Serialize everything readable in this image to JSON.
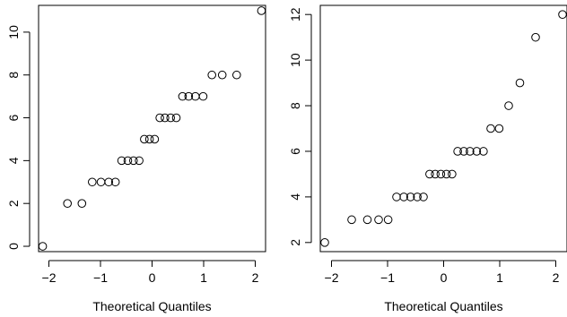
{
  "chart_data": [
    {
      "type": "scatter",
      "title": "",
      "xlabel": "Theoretical Quantiles",
      "ylabel": "",
      "xlim": [
        -2.2,
        2.2
      ],
      "ylim": [
        -0.25,
        11.25
      ],
      "x_ticks": [
        "−2",
        "−1",
        "0",
        "1",
        "2"
      ],
      "y_ticks": [
        "0",
        "2",
        "4",
        "6",
        "8",
        "10"
      ],
      "grid": false,
      "points": [
        {
          "x": -2.12,
          "y": 0
        },
        {
          "x": -1.64,
          "y": 2
        },
        {
          "x": -1.36,
          "y": 2
        },
        {
          "x": -1.16,
          "y": 3
        },
        {
          "x": -0.99,
          "y": 3
        },
        {
          "x": -0.84,
          "y": 3
        },
        {
          "x": -0.71,
          "y": 3
        },
        {
          "x": -0.59,
          "y": 4
        },
        {
          "x": -0.47,
          "y": 4
        },
        {
          "x": -0.36,
          "y": 4
        },
        {
          "x": -0.25,
          "y": 4
        },
        {
          "x": -0.15,
          "y": 5
        },
        {
          "x": -0.05,
          "y": 5
        },
        {
          "x": 0.05,
          "y": 5
        },
        {
          "x": 0.15,
          "y": 6
        },
        {
          "x": 0.25,
          "y": 6
        },
        {
          "x": 0.36,
          "y": 6
        },
        {
          "x": 0.47,
          "y": 6
        },
        {
          "x": 0.59,
          "y": 7
        },
        {
          "x": 0.71,
          "y": 7
        },
        {
          "x": 0.84,
          "y": 7
        },
        {
          "x": 0.99,
          "y": 7
        },
        {
          "x": 1.16,
          "y": 8
        },
        {
          "x": 1.36,
          "y": 8
        },
        {
          "x": 1.64,
          "y": 8
        },
        {
          "x": 2.12,
          "y": 11
        }
      ]
    },
    {
      "type": "scatter",
      "title": "",
      "xlabel": "Theoretical Quantiles",
      "ylabel": "",
      "xlim": [
        -2.2,
        2.2
      ],
      "ylim": [
        1.6,
        12.4
      ],
      "x_ticks": [
        "−2",
        "−1",
        "0",
        "1",
        "2"
      ],
      "y_ticks": [
        "2",
        "4",
        "6",
        "8",
        "10",
        "12"
      ],
      "grid": false,
      "points": [
        {
          "x": -2.12,
          "y": 2
        },
        {
          "x": -1.64,
          "y": 3
        },
        {
          "x": -1.36,
          "y": 3
        },
        {
          "x": -1.16,
          "y": 3
        },
        {
          "x": -0.99,
          "y": 3
        },
        {
          "x": -0.84,
          "y": 4
        },
        {
          "x": -0.71,
          "y": 4
        },
        {
          "x": -0.59,
          "y": 4
        },
        {
          "x": -0.47,
          "y": 4
        },
        {
          "x": -0.36,
          "y": 4
        },
        {
          "x": -0.25,
          "y": 5
        },
        {
          "x": -0.15,
          "y": 5
        },
        {
          "x": -0.05,
          "y": 5
        },
        {
          "x": 0.05,
          "y": 5
        },
        {
          "x": 0.15,
          "y": 5
        },
        {
          "x": 0.25,
          "y": 6
        },
        {
          "x": 0.36,
          "y": 6
        },
        {
          "x": 0.47,
          "y": 6
        },
        {
          "x": 0.59,
          "y": 6
        },
        {
          "x": 0.71,
          "y": 6
        },
        {
          "x": 0.84,
          "y": 7
        },
        {
          "x": 0.99,
          "y": 7
        },
        {
          "x": 1.16,
          "y": 8
        },
        {
          "x": 1.36,
          "y": 9
        },
        {
          "x": 1.64,
          "y": 11
        },
        {
          "x": 2.12,
          "y": 12
        }
      ]
    }
  ]
}
